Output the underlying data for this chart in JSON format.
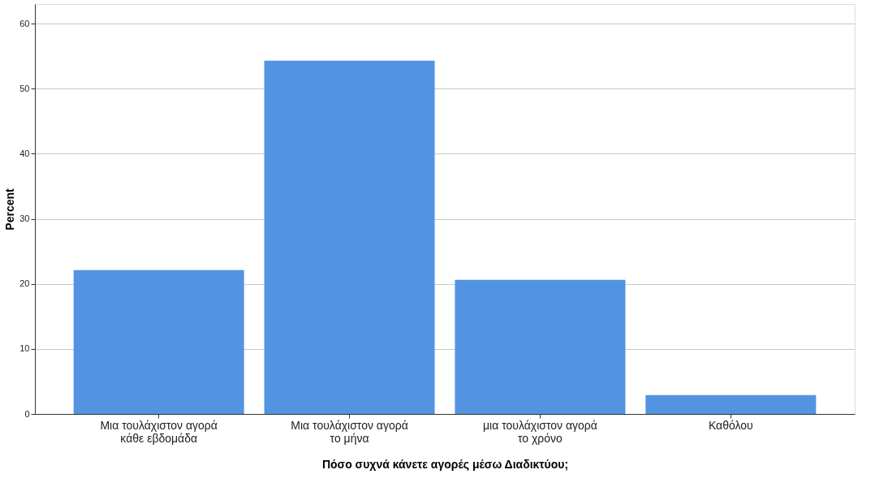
{
  "chart_data": {
    "type": "bar",
    "xlabel": "Πόσο συχνά κάνετε αγορές μέσω Διαδικτύου;",
    "ylabel": "Percent",
    "categories": [
      "Μια τουλάχιστον αγορά κάθε εβδομάδα",
      "Μια τουλάχιστον αγορά το μήνα",
      "μια τουλάχιστον αγορά το χρόνο",
      "Καθόλου"
    ],
    "values": [
      22.1,
      54.3,
      20.6,
      2.9
    ],
    "color": "#5294e2",
    "ylim": [
      0,
      63
    ],
    "yticks": [
      0,
      10,
      20,
      30,
      40,
      50,
      60
    ],
    "grid": "y"
  }
}
